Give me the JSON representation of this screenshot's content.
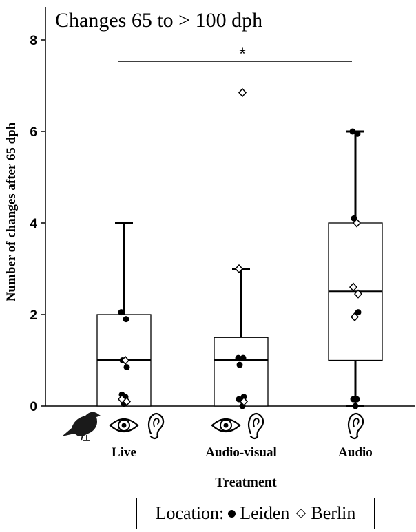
{
  "chart_data": {
    "type": "box",
    "title": "Changes 65 to > 100 dph",
    "xlabel": "Treatment",
    "ylabel": "Number of changes after 65 dph",
    "ylim": [
      0,
      8
    ],
    "yticks": [
      0,
      2,
      4,
      6,
      8
    ],
    "categories": [
      "Live",
      "Audio-visual",
      "Audio"
    ],
    "category_icons": [
      [
        "bird-icon",
        "eye-icon",
        "ear-icon"
      ],
      [
        "eye-icon",
        "ear-icon"
      ],
      [
        "ear-icon"
      ]
    ],
    "boxes": [
      {
        "category": "Live",
        "min": 0,
        "q1": 0,
        "median": 1,
        "q3": 2,
        "max": 4
      },
      {
        "category": "Audio-visual",
        "min": 0,
        "q1": 0,
        "median": 1,
        "q3": 1.5,
        "max": 3
      },
      {
        "category": "Audio",
        "min": 0,
        "q1": 1,
        "median": 2.5,
        "q3": 4,
        "max": 6
      }
    ],
    "points": {
      "Leiden": [
        {
          "category": "Live",
          "values": [
            2.05,
            1.9,
            1,
            0.85,
            0.25,
            0.2,
            0.05
          ]
        },
        {
          "category": "Audio-visual",
          "values": [
            1.05,
            1.05,
            0.9,
            0.2,
            0.15,
            0
          ]
        },
        {
          "category": "Audio",
          "values": [
            6,
            5.95,
            4.1,
            2.05,
            0.15,
            0.15,
            0
          ]
        }
      ],
      "Berlin": [
        {
          "category": "Live",
          "values": [
            1,
            0.15,
            0.1
          ]
        },
        {
          "category": "Audio-visual",
          "values": [
            6.85,
            3,
            0.1
          ]
        },
        {
          "category": "Audio",
          "values": [
            4,
            2.6,
            2.45,
            1.95
          ]
        }
      ]
    },
    "significance": {
      "from": "Live",
      "to": "Audio",
      "label": "*"
    },
    "grid": false,
    "legend": {
      "position": "bottom-center",
      "title": "Location:",
      "entries": [
        {
          "name": "Leiden",
          "marker": "filled-circle"
        },
        {
          "name": "Berlin",
          "marker": "open-diamond"
        }
      ]
    }
  }
}
